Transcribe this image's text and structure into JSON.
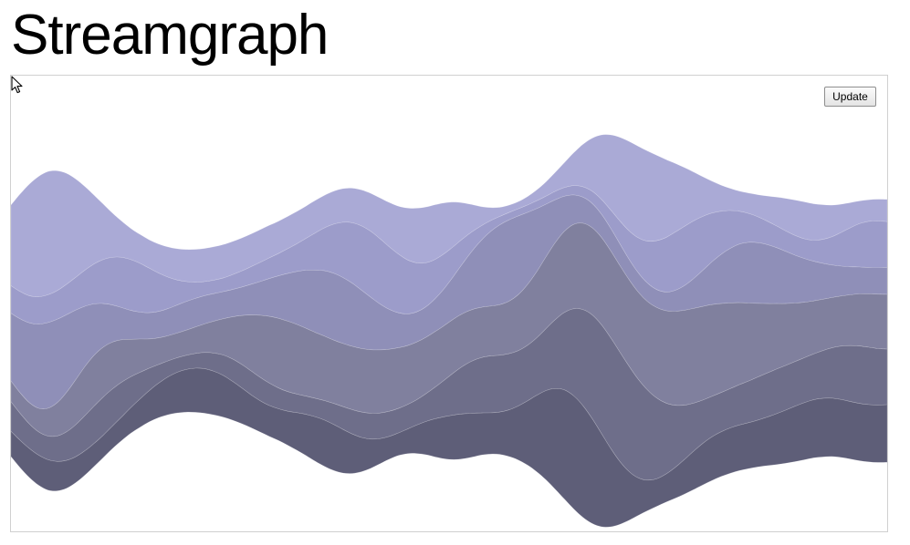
{
  "page": {
    "title": "Streamgraph"
  },
  "controls": {
    "update_label": "Update"
  },
  "icons": {
    "cursor": "mouse-pointer-icon"
  },
  "chart_data": {
    "type": "area",
    "offset": "wiggle",
    "x": [
      0,
      1,
      2,
      3,
      4,
      5,
      6,
      7,
      8,
      9,
      10,
      11,
      12,
      13,
      14,
      15,
      16,
      17,
      18,
      19,
      20,
      21,
      22,
      23,
      24,
      25,
      26,
      27,
      28,
      29,
      30,
      31,
      32,
      33,
      34,
      35,
      36,
      37,
      38,
      39,
      40,
      41,
      42,
      43,
      44,
      45,
      46,
      47,
      48,
      49,
      50,
      51,
      52,
      53,
      54,
      55,
      56,
      57,
      58,
      59,
      60,
      61,
      62,
      63,
      64,
      65,
      66,
      67,
      68,
      69,
      70,
      71,
      72,
      73,
      74,
      75,
      76,
      77,
      78,
      79,
      80,
      81,
      82,
      83,
      84,
      85,
      86,
      87,
      88,
      89,
      90,
      91,
      92,
      93,
      94,
      95
    ],
    "colors": [
      "#aaaad6",
      "#9c9cca",
      "#8f8fb8",
      "#80809e",
      "#6e6e8a",
      "#5e5e78"
    ],
    "series": [
      {
        "values": [
          37.2,
          45,
          51.5,
          55.5,
          56.8,
          55.3,
          51.3,
          45.5,
          38.7,
          31.8,
          25.6,
          20.4,
          16.7,
          14.4,
          13.3,
          13.1,
          13.4,
          13.9,
          14.4,
          14.8,
          15.1,
          15.3,
          15.4,
          15.4,
          15.3,
          15.2,
          15.1,
          15.1,
          15,
          14.9,
          14.9,
          14.9,
          14.9,
          15,
          15,
          15.2,
          15.5,
          15.9,
          16.6,
          17.5,
          18.8,
          20.4,
          22.1,
          23.9,
          25.2,
          25.7,
          25.2,
          23.4,
          20.4,
          16.5,
          12.5,
          8.8,
          6,
          4.2,
          3.4,
          3.3,
          3.9,
          5,
          6.6,
          8.7,
          11.5,
          15.1,
          19.5,
          24.4,
          29.6,
          34.5,
          38.5,
          41.2,
          42.2,
          41.6,
          39.4,
          36,
          31.8,
          27.2,
          22.6,
          18.3,
          14.7,
          12,
          10.2,
          9.3,
          9.4,
          10.2,
          11.6,
          13.3,
          15,
          16.3,
          17,
          16.8,
          16,
          14.6,
          13,
          11.6,
          10.5,
          10,
          10,
          10.3
        ]
      },
      {
        "values": [
          12.7,
          12.6,
          12.5,
          12.6,
          12.8,
          13.2,
          14,
          15.1,
          16.6,
          18.4,
          20.3,
          22,
          23.2,
          23.4,
          22.5,
          20.5,
          17.7,
          14.6,
          11.6,
          9.2,
          7.5,
          6.5,
          6.2,
          6.3,
          6.8,
          7.4,
          8.1,
          8.8,
          9.5,
          10.3,
          11.4,
          12.8,
          14.7,
          17.1,
          19.8,
          22.7,
          25.5,
          27.9,
          29.6,
          30.4,
          30.1,
          28.9,
          27.1,
          24.9,
          22.6,
          20.3,
          18.1,
          16,
          13.7,
          11.3,
          8.9,
          6.7,
          5,
          3.9,
          3.4,
          3.3,
          3.4,
          3.6,
          3.7,
          3.9,
          4,
          4.3,
          4.8,
          5.6,
          6.8,
          8.4,
          10.5,
          13.1,
          16.1,
          19.3,
          22.5,
          25.1,
          26.8,
          27.3,
          26.6,
          24.9,
          22.5,
          19.9,
          17.4,
          15.1,
          13.3,
          11.9,
          10.8,
          10,
          9.4,
          9.1,
          9.1,
          9.7,
          11,
          13,
          15.5,
          18,
          20,
          21.2,
          21.5,
          21.1
        ]
      },
      {
        "values": [
          31.2,
          34.1,
          36.8,
          38.8,
          39.5,
          38.5,
          35.9,
          32.2,
          27.9,
          23.8,
          20.1,
          17.1,
          14.8,
          13.3,
          12.4,
          12.1,
          12.2,
          12.5,
          12.9,
          13.2,
          13.2,
          13,
          12.7,
          12.5,
          12.6,
          13.1,
          14.1,
          15.5,
          17.4,
          19.6,
          22,
          24.4,
          26.8,
          28.8,
          30.2,
          30.8,
          30.4,
          29.1,
          26.9,
          24.2,
          21.2,
          18.4,
          16.1,
          14.6,
          13.9,
          14.1,
          15.2,
          17.1,
          19.8,
          23.2,
          27,
          30.9,
          34.4,
          36.8,
          37.5,
          36.3,
          33.3,
          29.1,
          24.3,
          19.8,
          16.2,
          13.6,
          12,
          11.2,
          10.7,
          10.4,
          10,
          9.4,
          8.9,
          8.5,
          8.3,
          8.6,
          9.6,
          11.3,
          13.7,
          16.6,
          19.7,
          22.7,
          25.2,
          27,
          28,
          28,
          27.2,
          25.8,
          24.1,
          22.1,
          20.2,
          18.3,
          16.6,
          15,
          13.8,
          12.9,
          12.4,
          12.2,
          12.3,
          12.5
        ]
      },
      {
        "values": [
          9.6,
          9.5,
          9.8,
          10.9,
          12.8,
          15.3,
          18.1,
          20.7,
          22.6,
          23.4,
          23,
          21.6,
          19.6,
          17.3,
          15.3,
          13.5,
          12.3,
          11.6,
          11.4,
          11.6,
          12.2,
          13.2,
          14.7,
          16.7,
          19.4,
          22.5,
          25.7,
          28.6,
          30.8,
          32.1,
          32.5,
          32.1,
          31.3,
          30.4,
          29.7,
          29.2,
          29.1,
          29.2,
          29.3,
          29.3,
          29.1,
          28.6,
          28,
          27.2,
          26.6,
          26,
          25.6,
          25.2,
          24.8,
          24.3,
          23.7,
          23.2,
          23,
          23.3,
          24.2,
          25.8,
          28,
          30.5,
          33.1,
          35.5,
          37.4,
          38.9,
          39.8,
          40.2,
          40.3,
          40.1,
          39.9,
          39.9,
          40.2,
          40.8,
          41.7,
          42.6,
          43.4,
          43.8,
          43.7,
          43.2,
          42.3,
          41,
          39.5,
          37.8,
          35.9,
          33.9,
          32,
          30.2,
          28.5,
          27,
          25.6,
          24.5,
          23.7,
          23.2,
          23.1,
          23.4,
          24,
          24.6,
          25.1,
          25.2
        ]
      },
      {
        "values": [
          13.6,
          12.4,
          11.3,
          10.7,
          10.9,
          11.7,
          13.1,
          14.7,
          16.2,
          17.2,
          17.6,
          17.1,
          16,
          14.2,
          12.3,
          10.3,
          8.6,
          7.4,
          6.7,
          6.5,
          6.8,
          7.5,
          8.4,
          9.4,
          10.3,
          10.8,
          11,
          10.8,
          10.3,
          9.6,
          9,
          8.6,
          8.4,
          8.5,
          9,
          9.7,
          10.5,
          11.2,
          11.7,
          11.9,
          11.8,
          11.6,
          11.3,
          11.3,
          11.7,
          12.8,
          14.6,
          16.9,
          19.5,
          22,
          24.1,
          25.5,
          26.2,
          26.2,
          25.9,
          25.5,
          25.6,
          26.5,
          28.5,
          31.7,
          35.7,
          40.1,
          44.3,
          47.8,
          50.1,
          51,
          50.5,
          48.6,
          45.5,
          41.6,
          37.3,
          32.8,
          28.7,
          25.1,
          22.2,
          20,
          18.7,
          18.1,
          18.1,
          18.6,
          19.2,
          19.9,
          20.3,
          20.6,
          20.6,
          20.6,
          20.7,
          21.1,
          22,
          23.2,
          24.6,
          25.8,
          26.5,
          26.5,
          26,
          25.6
        ]
      },
      {
        "values": [
          11.7,
          12.6,
          13.4,
          13.9,
          14,
          13.6,
          12.9,
          12,
          11.2,
          10.6,
          10.3,
          10.4,
          10.9,
          11.8,
          13,
          14.4,
          15.9,
          17.4,
          18.7,
          19.7,
          20.3,
          20.5,
          20.1,
          19.2,
          17.9,
          16.5,
          15.2,
          14.4,
          14.2,
          14.6,
          15.7,
          17.3,
          19,
          20.5,
          21.3,
          21.2,
          20.1,
          18.2,
          15.8,
          13.5,
          11.6,
          10.5,
          10.4,
          11.3,
          13.1,
          15.3,
          17.6,
          19.4,
          20.5,
          20.7,
          20.2,
          19.4,
          19,
          19.5,
          21.5,
          24.9,
          29.6,
          35.2,
          41.1,
          46.4,
          50.3,
          52.1,
          51.5,
          48.4,
          43.1,
          36.3,
          29.1,
          22.5,
          17.3,
          14.1,
          12.7,
          12.9,
          14.2,
          15.9,
          17.7,
          19.1,
          20.1,
          20.6,
          20.9,
          21,
          21.2,
          21.6,
          22.4,
          23.4,
          24.5,
          25.5,
          26.3,
          26.8,
          27,
          26.9,
          26.7,
          26.5,
          26.4,
          26.4,
          26.5,
          26.6
        ]
      }
    ]
  }
}
